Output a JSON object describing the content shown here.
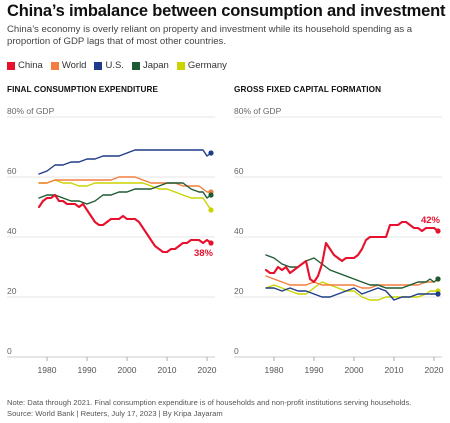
{
  "title": "China’s imbalance between consumption and investment",
  "subtitle": "China’s economy is overly reliant on property and investment while its household spending as a proportion of GDP lags that of most other countries.",
  "legend": [
    {
      "label": "China",
      "color": "#e8112d"
    },
    {
      "label": "World",
      "color": "#f47e3e"
    },
    {
      "label": "U.S.",
      "color": "#1f3c88"
    },
    {
      "label": "Japan",
      "color": "#1e5a32"
    },
    {
      "label": "Germany",
      "color": "#c9d400"
    }
  ],
  "footnote": {
    "line1": "Note: Data through 2021. Final consumption expenditure is of households and non-profit institutions serving households.",
    "line2": "Source: World Bank | Reuters, July 17, 2023 | By Kripa Jayaram"
  },
  "chart_data": [
    {
      "type": "line",
      "title": "FINAL CONSUMPTION EXPENDITURE",
      "unit_label": "80% of GDP",
      "ylim": [
        0,
        80
      ],
      "xlim": [
        1977,
        2022
      ],
      "yticks": [
        "0",
        "20",
        "40",
        "60"
      ],
      "xticks": [
        "1980",
        "1990",
        "2000",
        "2010",
        "2020"
      ],
      "xtick_values": [
        1980,
        1990,
        2000,
        2010,
        2020
      ],
      "end_label": "38%",
      "end_label_series": "China",
      "series": [
        {
          "name": "China",
          "x": [
            1978,
            1979,
            1980,
            1981,
            1982,
            1983,
            1984,
            1985,
            1986,
            1987,
            1988,
            1989,
            1990,
            1991,
            1992,
            1993,
            1994,
            1995,
            1996,
            1997,
            1998,
            1999,
            2000,
            2001,
            2002,
            2003,
            2004,
            2005,
            2006,
            2007,
            2008,
            2009,
            2010,
            2011,
            2012,
            2013,
            2014,
            2015,
            2016,
            2017,
            2018,
            2019,
            2020,
            2021
          ],
          "y": [
            50,
            52,
            53,
            53,
            54,
            52,
            52,
            51,
            51,
            51,
            50,
            51,
            49,
            47,
            45,
            44,
            44,
            45,
            46,
            46,
            46,
            47,
            46,
            46,
            46,
            45,
            43,
            41,
            39,
            37,
            36,
            35,
            35,
            36,
            36,
            37,
            38,
            38,
            39,
            39,
            39,
            38,
            39,
            38
          ]
        },
        {
          "name": "World",
          "x": [
            1978,
            1980,
            1982,
            1984,
            1986,
            1988,
            1990,
            1992,
            1994,
            1996,
            1998,
            2000,
            2002,
            2004,
            2006,
            2008,
            2010,
            2012,
            2014,
            2016,
            2018,
            2019,
            2020,
            2021
          ],
          "y": [
            58,
            58,
            59,
            59,
            59,
            59,
            59,
            59,
            59,
            59,
            60,
            60,
            60,
            59,
            58,
            58,
            58,
            58,
            57,
            57,
            57,
            56,
            55,
            55
          ]
        },
        {
          "name": "U.S.",
          "x": [
            1978,
            1980,
            1982,
            1984,
            1986,
            1988,
            1990,
            1992,
            1994,
            1996,
            1998,
            2000,
            2002,
            2004,
            2006,
            2008,
            2010,
            2012,
            2014,
            2016,
            2018,
            2019,
            2020,
            2021
          ],
          "y": [
            61,
            62,
            64,
            64,
            65,
            65,
            66,
            66,
            67,
            67,
            67,
            68,
            69,
            69,
            69,
            69,
            69,
            69,
            69,
            69,
            69,
            69,
            67,
            68
          ]
        },
        {
          "name": "Japan",
          "x": [
            1978,
            1980,
            1982,
            1984,
            1986,
            1988,
            1990,
            1992,
            1994,
            1996,
            1998,
            2000,
            2002,
            2004,
            2006,
            2008,
            2010,
            2012,
            2014,
            2016,
            2018,
            2019,
            2020,
            2021
          ],
          "y": [
            53,
            54,
            54,
            53,
            52,
            52,
            51,
            52,
            54,
            54,
            55,
            55,
            56,
            56,
            56,
            57,
            58,
            58,
            58,
            56,
            55,
            55,
            53,
            54
          ]
        },
        {
          "name": "Germany",
          "x": [
            1978,
            1980,
            1982,
            1984,
            1986,
            1988,
            1990,
            1992,
            1994,
            1996,
            1998,
            2000,
            2002,
            2004,
            2006,
            2008,
            2010,
            2012,
            2014,
            2016,
            2018,
            2019,
            2020,
            2021
          ],
          "y": [
            58,
            58,
            59,
            58,
            58,
            57,
            57,
            58,
            58,
            58,
            58,
            58,
            58,
            58,
            57,
            56,
            56,
            55,
            54,
            53,
            53,
            53,
            51,
            49
          ]
        }
      ]
    },
    {
      "type": "line",
      "title": "GROSS FIXED CAPITAL FORMATION",
      "unit_label": "80% of GDP",
      "ylim": [
        0,
        80
      ],
      "xlim": [
        1977,
        2022
      ],
      "yticks": [
        "0",
        "20",
        "40",
        "60"
      ],
      "xticks": [
        "1980",
        "1990",
        "2000",
        "2010",
        "2020"
      ],
      "xtick_values": [
        1980,
        1990,
        2000,
        2010,
        2020
      ],
      "end_label": "42%",
      "end_label_series": "China",
      "series": [
        {
          "name": "China",
          "x": [
            1978,
            1979,
            1980,
            1981,
            1982,
            1983,
            1984,
            1985,
            1986,
            1987,
            1988,
            1989,
            1990,
            1991,
            1992,
            1993,
            1994,
            1995,
            1996,
            1997,
            1998,
            1999,
            2000,
            2001,
            2002,
            2003,
            2004,
            2005,
            2006,
            2007,
            2008,
            2009,
            2010,
            2011,
            2012,
            2013,
            2014,
            2015,
            2016,
            2017,
            2018,
            2019,
            2020,
            2021
          ],
          "y": [
            29,
            28,
            28,
            30,
            29,
            30,
            28,
            29,
            30,
            31,
            32,
            26,
            25,
            27,
            31,
            38,
            36,
            34,
            33,
            32,
            33,
            33,
            33,
            34,
            36,
            39,
            40,
            40,
            40,
            40,
            40,
            44,
            44,
            44,
            45,
            45,
            44,
            43,
            43,
            42,
            43,
            43,
            43,
            42
          ]
        },
        {
          "name": "World",
          "x": [
            1978,
            1980,
            1982,
            1984,
            1986,
            1988,
            1990,
            1992,
            1994,
            1996,
            1998,
            2000,
            2002,
            2004,
            2006,
            2008,
            2010,
            2012,
            2014,
            2016,
            2018,
            2019,
            2020,
            2021
          ],
          "y": [
            27,
            26,
            25,
            24,
            24,
            24,
            25,
            24,
            24,
            24,
            24,
            24,
            23,
            23,
            24,
            24,
            24,
            24,
            24,
            24,
            25,
            25,
            25,
            26
          ]
        },
        {
          "name": "U.S.",
          "x": [
            1978,
            1980,
            1982,
            1984,
            1986,
            1988,
            1990,
            1992,
            1994,
            1996,
            1998,
            2000,
            2002,
            2004,
            2006,
            2008,
            2010,
            2012,
            2014,
            2016,
            2018,
            2019,
            2020,
            2021
          ],
          "y": [
            23,
            23,
            22,
            23,
            22,
            22,
            21,
            20,
            20,
            21,
            22,
            23,
            21,
            22,
            23,
            22,
            19,
            20,
            20,
            21,
            21,
            21,
            21,
            21
          ]
        },
        {
          "name": "Japan",
          "x": [
            1978,
            1980,
            1982,
            1984,
            1986,
            1988,
            1990,
            1992,
            1994,
            1996,
            1998,
            2000,
            2002,
            2004,
            2006,
            2008,
            2010,
            2012,
            2014,
            2016,
            2018,
            2019,
            2020,
            2021
          ],
          "y": [
            34,
            33,
            31,
            30,
            30,
            32,
            33,
            31,
            29,
            28,
            27,
            26,
            25,
            24,
            24,
            23,
            23,
            23,
            24,
            25,
            25,
            26,
            25,
            26
          ]
        },
        {
          "name": "Germany",
          "x": [
            1978,
            1980,
            1982,
            1984,
            1986,
            1988,
            1990,
            1992,
            1994,
            1996,
            1998,
            2000,
            2002,
            2004,
            2006,
            2008,
            2010,
            2012,
            2014,
            2016,
            2018,
            2019,
            2020,
            2021
          ],
          "y": [
            23,
            24,
            23,
            22,
            21,
            21,
            23,
            25,
            24,
            23,
            22,
            22,
            20,
            19,
            19,
            20,
            20,
            20,
            20,
            20,
            21,
            22,
            22,
            22
          ]
        }
      ]
    }
  ]
}
